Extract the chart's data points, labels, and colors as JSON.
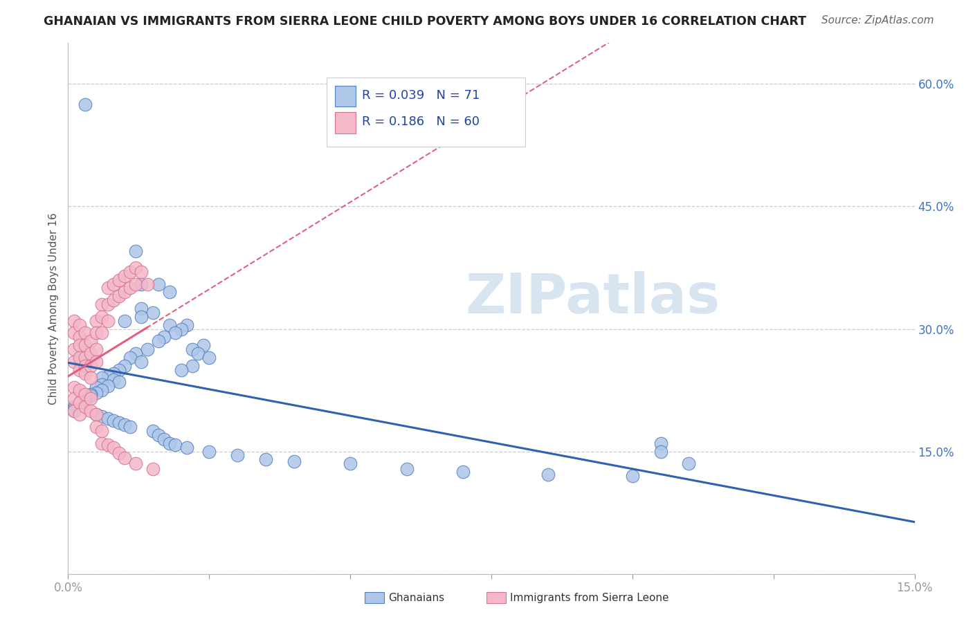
{
  "title": "GHANAIAN VS IMMIGRANTS FROM SIERRA LEONE CHILD POVERTY AMONG BOYS UNDER 16 CORRELATION CHART",
  "source": "Source: ZipAtlas.com",
  "ylabel": "Child Poverty Among Boys Under 16",
  "xlim": [
    0.0,
    0.15
  ],
  "ylim": [
    0.0,
    0.65
  ],
  "xtick_positions": [
    0.0,
    0.025,
    0.05,
    0.075,
    0.1,
    0.125,
    0.15
  ],
  "xticklabels": [
    "0.0%",
    "",
    "",
    "",
    "",
    "",
    "15.0%"
  ],
  "ytick_positions": [
    0.0,
    0.15,
    0.3,
    0.45,
    0.6
  ],
  "ytick_labels": [
    "",
    "15.0%",
    "30.0%",
    "45.0%",
    "60.0%"
  ],
  "blue_R": "0.039",
  "blue_N": "71",
  "pink_R": "0.186",
  "pink_N": "60",
  "blue_face_color": "#aec6e8",
  "blue_edge_color": "#5080c0",
  "pink_face_color": "#f4b8c8",
  "pink_edge_color": "#d87090",
  "blue_line_color": "#3060b0",
  "pink_line_color": "#e06080",
  "watermark": "ZIPatlas",
  "watermark_color": "#d8e4f0",
  "grid_color": "#cccccc",
  "title_color": "#222222",
  "source_color": "#666666",
  "label_color": "#555555",
  "tick_color": "#4472c4",
  "blue_scatter": [
    [
      0.003,
      0.575
    ],
    [
      0.012,
      0.395
    ],
    [
      0.013,
      0.355
    ],
    [
      0.016,
      0.355
    ],
    [
      0.018,
      0.345
    ],
    [
      0.013,
      0.325
    ],
    [
      0.015,
      0.32
    ],
    [
      0.013,
      0.315
    ],
    [
      0.01,
      0.31
    ],
    [
      0.018,
      0.305
    ],
    [
      0.021,
      0.305
    ],
    [
      0.02,
      0.3
    ],
    [
      0.019,
      0.295
    ],
    [
      0.017,
      0.29
    ],
    [
      0.016,
      0.285
    ],
    [
      0.024,
      0.28
    ],
    [
      0.022,
      0.275
    ],
    [
      0.014,
      0.275
    ],
    [
      0.023,
      0.27
    ],
    [
      0.012,
      0.27
    ],
    [
      0.011,
      0.265
    ],
    [
      0.025,
      0.265
    ],
    [
      0.013,
      0.26
    ],
    [
      0.01,
      0.255
    ],
    [
      0.022,
      0.255
    ],
    [
      0.009,
      0.25
    ],
    [
      0.02,
      0.25
    ],
    [
      0.008,
      0.245
    ],
    [
      0.007,
      0.242
    ],
    [
      0.006,
      0.24
    ],
    [
      0.008,
      0.238
    ],
    [
      0.009,
      0.235
    ],
    [
      0.006,
      0.232
    ],
    [
      0.007,
      0.23
    ],
    [
      0.005,
      0.228
    ],
    [
      0.006,
      0.225
    ],
    [
      0.005,
      0.222
    ],
    [
      0.004,
      0.22
    ],
    [
      0.004,
      0.218
    ],
    [
      0.003,
      0.215
    ],
    [
      0.003,
      0.212
    ],
    [
      0.002,
      0.21
    ],
    [
      0.002,
      0.208
    ],
    [
      0.001,
      0.205
    ],
    [
      0.001,
      0.202
    ],
    [
      0.001,
      0.2
    ],
    [
      0.005,
      0.195
    ],
    [
      0.006,
      0.193
    ],
    [
      0.007,
      0.19
    ],
    [
      0.008,
      0.188
    ],
    [
      0.009,
      0.185
    ],
    [
      0.01,
      0.183
    ],
    [
      0.011,
      0.18
    ],
    [
      0.015,
      0.175
    ],
    [
      0.016,
      0.17
    ],
    [
      0.017,
      0.165
    ],
    [
      0.018,
      0.16
    ],
    [
      0.019,
      0.158
    ],
    [
      0.021,
      0.155
    ],
    [
      0.025,
      0.15
    ],
    [
      0.03,
      0.145
    ],
    [
      0.035,
      0.14
    ],
    [
      0.04,
      0.138
    ],
    [
      0.05,
      0.135
    ],
    [
      0.06,
      0.128
    ],
    [
      0.07,
      0.125
    ],
    [
      0.085,
      0.122
    ],
    [
      0.1,
      0.12
    ],
    [
      0.11,
      0.135
    ],
    [
      0.105,
      0.16
    ],
    [
      0.105,
      0.15
    ]
  ],
  "pink_scatter": [
    [
      0.001,
      0.31
    ],
    [
      0.001,
      0.295
    ],
    [
      0.001,
      0.275
    ],
    [
      0.001,
      0.26
    ],
    [
      0.002,
      0.305
    ],
    [
      0.002,
      0.29
    ],
    [
      0.002,
      0.28
    ],
    [
      0.002,
      0.265
    ],
    [
      0.002,
      0.25
    ],
    [
      0.003,
      0.295
    ],
    [
      0.003,
      0.28
    ],
    [
      0.003,
      0.265
    ],
    [
      0.003,
      0.255
    ],
    [
      0.003,
      0.245
    ],
    [
      0.004,
      0.285
    ],
    [
      0.004,
      0.27
    ],
    [
      0.004,
      0.255
    ],
    [
      0.004,
      0.24
    ],
    [
      0.005,
      0.31
    ],
    [
      0.005,
      0.295
    ],
    [
      0.005,
      0.275
    ],
    [
      0.005,
      0.26
    ],
    [
      0.006,
      0.33
    ],
    [
      0.006,
      0.315
    ],
    [
      0.006,
      0.295
    ],
    [
      0.007,
      0.35
    ],
    [
      0.007,
      0.33
    ],
    [
      0.007,
      0.31
    ],
    [
      0.008,
      0.355
    ],
    [
      0.008,
      0.335
    ],
    [
      0.009,
      0.36
    ],
    [
      0.009,
      0.34
    ],
    [
      0.01,
      0.365
    ],
    [
      0.01,
      0.345
    ],
    [
      0.011,
      0.37
    ],
    [
      0.011,
      0.35
    ],
    [
      0.012,
      0.375
    ],
    [
      0.012,
      0.355
    ],
    [
      0.013,
      0.37
    ],
    [
      0.014,
      0.355
    ],
    [
      0.001,
      0.228
    ],
    [
      0.001,
      0.215
    ],
    [
      0.001,
      0.2
    ],
    [
      0.002,
      0.225
    ],
    [
      0.002,
      0.21
    ],
    [
      0.002,
      0.195
    ],
    [
      0.003,
      0.22
    ],
    [
      0.003,
      0.205
    ],
    [
      0.004,
      0.215
    ],
    [
      0.004,
      0.2
    ],
    [
      0.005,
      0.195
    ],
    [
      0.005,
      0.18
    ],
    [
      0.006,
      0.175
    ],
    [
      0.006,
      0.16
    ],
    [
      0.007,
      0.158
    ],
    [
      0.008,
      0.155
    ],
    [
      0.009,
      0.148
    ],
    [
      0.01,
      0.142
    ],
    [
      0.012,
      0.135
    ],
    [
      0.015,
      0.128
    ]
  ]
}
